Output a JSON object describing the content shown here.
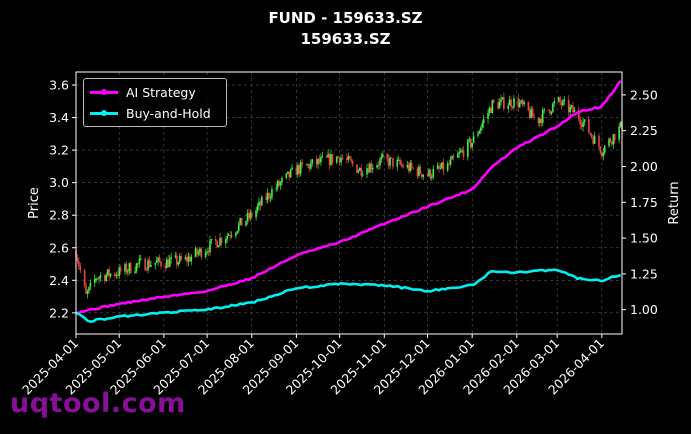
{
  "chart_data": {
    "type": "candlestick-line",
    "title": "FUND - 159633.SZ",
    "subtitle": "159633.SZ",
    "ylabel_left": "Price",
    "ylabel_right": "Return",
    "xlabel": "",
    "ylim_left": [
      2.07,
      3.68
    ],
    "ylim_right": [
      0.83,
      2.66
    ],
    "yticks_left": [
      2.2,
      2.4,
      2.6,
      2.8,
      3.0,
      3.2,
      3.4,
      3.6
    ],
    "ytick_labels_left": [
      "2.2",
      "2.4",
      "2.6",
      "2.8",
      "3.0",
      "3.2",
      "3.4",
      "3.6"
    ],
    "yticks_right": [
      1.0,
      1.25,
      1.5,
      1.75,
      2.0,
      2.25,
      2.5
    ],
    "ytick_labels_right": [
      "1.00",
      "1.25",
      "1.50",
      "1.75",
      "2.00",
      "2.25",
      "2.50"
    ],
    "x_range": [
      "2025-04-01",
      "2026-04-15"
    ],
    "xtick_labels": [
      "2025-04-01",
      "2025-05-01",
      "2025-06-01",
      "2025-07-01",
      "2025-08-01",
      "2025-09-01",
      "2025-10-01",
      "2025-11-01",
      "2025-12-01",
      "2026-01-01",
      "2026-02-01",
      "2026-03-01",
      "2026-04-01"
    ],
    "grid": true,
    "legend_position": "top-left",
    "colors": {
      "up": "#44ee44",
      "down": "#ee4444",
      "ai": "#ff00ff",
      "bh": "#00f0f0"
    },
    "price_series": {
      "dates": [
        "2025-04-01",
        "2025-04-08",
        "2025-04-15",
        "2025-05-01",
        "2025-05-15",
        "2025-06-01",
        "2025-06-15",
        "2025-07-01",
        "2025-07-15",
        "2025-08-01",
        "2025-08-15",
        "2025-09-01",
        "2025-09-15",
        "2025-10-01",
        "2025-10-15",
        "2025-11-01",
        "2025-11-15",
        "2025-12-01",
        "2025-12-15",
        "2026-01-01",
        "2026-01-15",
        "2026-02-01",
        "2026-02-15",
        "2026-03-01",
        "2026-03-15",
        "2026-04-01",
        "2026-04-15"
      ],
      "close": [
        2.58,
        2.3,
        2.42,
        2.45,
        2.5,
        2.51,
        2.52,
        2.6,
        2.68,
        2.8,
        2.95,
        3.08,
        3.12,
        3.16,
        3.08,
        3.14,
        3.1,
        3.05,
        3.1,
        3.25,
        3.48,
        3.5,
        3.38,
        3.5,
        3.42,
        3.2,
        3.35
      ]
    },
    "series": [
      {
        "name": "AI Strategy",
        "dates": [
          "2025-04-01",
          "2025-05-01",
          "2025-06-01",
          "2025-07-01",
          "2025-08-01",
          "2025-09-01",
          "2025-10-01",
          "2025-11-01",
          "2025-12-01",
          "2026-01-01",
          "2026-01-15",
          "2026-02-01",
          "2026-03-01",
          "2026-03-15",
          "2026-04-01",
          "2026-04-15"
        ],
        "values": [
          0.98,
          1.04,
          1.09,
          1.13,
          1.22,
          1.38,
          1.47,
          1.6,
          1.72,
          1.84,
          2.0,
          2.13,
          2.28,
          2.38,
          2.42,
          2.61
        ]
      },
      {
        "name": "Buy-and-Hold",
        "dates": [
          "2025-04-01",
          "2025-04-10",
          "2025-05-01",
          "2025-06-01",
          "2025-07-01",
          "2025-08-01",
          "2025-09-01",
          "2025-10-01",
          "2025-11-01",
          "2025-12-01",
          "2026-01-01",
          "2026-01-15",
          "2026-02-01",
          "2026-03-01",
          "2026-03-15",
          "2026-04-01",
          "2026-04-15"
        ],
        "values": [
          0.98,
          0.92,
          0.95,
          0.98,
          1.0,
          1.05,
          1.15,
          1.18,
          1.17,
          1.13,
          1.17,
          1.27,
          1.26,
          1.28,
          1.22,
          1.2,
          1.25
        ]
      }
    ]
  },
  "legend": {
    "items": [
      {
        "label": "AI Strategy",
        "color": "#ff00ff"
      },
      {
        "label": "Buy-and-Hold",
        "color": "#00f0f0"
      }
    ]
  },
  "watermark": "uqtool.com"
}
